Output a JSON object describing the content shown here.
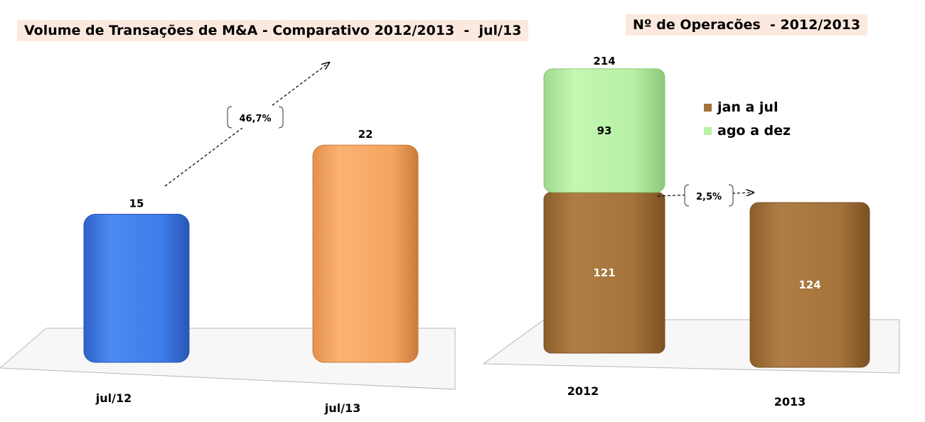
{
  "left_title": "Volume de Transações de M&A - Comparativo 2012/2013  -  jul/13",
  "right_title": "Nº de Operacões  - 2012/2013",
  "colors": {
    "jul12": "#3d7be8",
    "jul13": "#f6a561",
    "jan_a_jul": "#a4723a",
    "ago_a_dez": "#b7f0a5"
  },
  "chart_data": [
    {
      "type": "bar",
      "title": "Volume de Transações de M&A - Comparativo 2012/2013  -  jul/13",
      "categories": [
        "jul/12",
        "jul/13"
      ],
      "values": [
        15,
        22
      ],
      "value_labels": [
        "15",
        "22"
      ],
      "annotation": "46,7%"
    },
    {
      "type": "bar",
      "stacked": true,
      "title": "Nº de Operacões  - 2012/2013",
      "categories": [
        "2012",
        "2013"
      ],
      "series": [
        {
          "name": "jan a jul",
          "values": [
            121,
            124
          ],
          "labels": [
            "121",
            "124"
          ]
        },
        {
          "name": "ago a dez",
          "values": [
            93,
            null
          ],
          "labels": [
            "93",
            ""
          ]
        }
      ],
      "totals": [
        "214",
        ""
      ],
      "annotation": "2,5%",
      "legend": "right"
    }
  ]
}
